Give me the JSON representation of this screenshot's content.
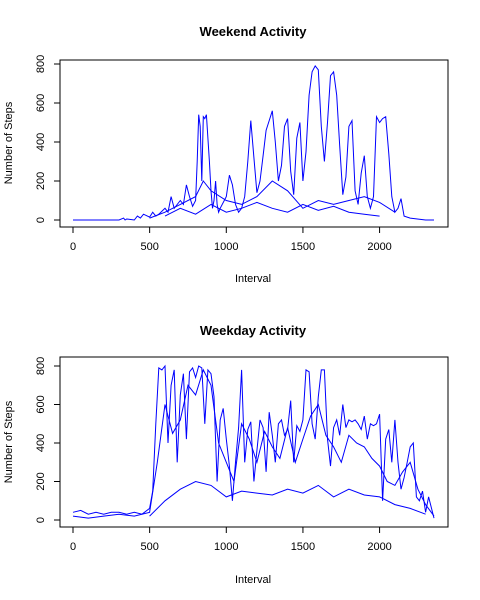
{
  "chart_data": [
    {
      "type": "line",
      "title": "Weekend Activity",
      "xlabel": "Interval",
      "ylabel": "Number of Steps",
      "xlim": [
        0,
        2355
      ],
      "ylim": [
        0,
        800
      ],
      "xticks": [
        0,
        500,
        1000,
        1500,
        2000
      ],
      "yticks": [
        0,
        200,
        400,
        600,
        800
      ],
      "color": "#0000ff",
      "series": [
        {
          "x": [
            0,
            300,
            330,
            340,
            350,
            400,
            420,
            440,
            460,
            500,
            520,
            540,
            560,
            600,
            620,
            640,
            660,
            700,
            720,
            740,
            760,
            780,
            800,
            810,
            820,
            830,
            840,
            850,
            860,
            870,
            880,
            890,
            900,
            910,
            920,
            930,
            940,
            950,
            960,
            1000,
            1020,
            1040,
            1060,
            1080,
            1100,
            1120,
            1140,
            1160,
            1180,
            1200,
            1220,
            1240,
            1260,
            1280,
            1300,
            1320,
            1340,
            1360,
            1380,
            1400,
            1420,
            1440,
            1460,
            1480,
            1500,
            1520,
            1540,
            1560,
            1580,
            1600,
            1620,
            1640,
            1660,
            1680,
            1700,
            1720,
            1740,
            1760,
            1780,
            1800,
            1820,
            1840,
            1860,
            1880,
            1900,
            1920,
            1940,
            1960,
            1980,
            2000,
            2020,
            2040,
            2060,
            2080,
            2100,
            2120,
            2140,
            2160,
            2200,
            2300,
            2355
          ],
          "y": [
            0,
            0,
            10,
            0,
            5,
            0,
            20,
            10,
            30,
            15,
            40,
            20,
            30,
            60,
            40,
            120,
            60,
            100,
            80,
            180,
            120,
            70,
            100,
            300,
            540,
            480,
            200,
            530,
            520,
            540,
            420,
            300,
            150,
            60,
            100,
            200,
            80,
            40,
            60,
            120,
            230,
            180,
            80,
            40,
            60,
            120,
            300,
            510,
            320,
            140,
            200,
            330,
            460,
            510,
            560,
            400,
            200,
            280,
            480,
            520,
            250,
            130,
            420,
            500,
            200,
            350,
            640,
            760,
            790,
            770,
            480,
            300,
            500,
            740,
            760,
            640,
            380,
            130,
            220,
            480,
            510,
            150,
            80,
            240,
            330,
            120,
            60,
            120,
            530,
            500,
            520,
            530,
            340,
            120,
            40,
            60,
            110,
            20,
            10,
            0,
            0
          ]
        },
        {
          "x": [
            500,
            600,
            700,
            800,
            850,
            900,
            1000,
            1100,
            1200,
            1300,
            1400,
            1500,
            1600,
            1700,
            1800,
            1900,
            2000,
            2100
          ],
          "y": [
            10,
            40,
            80,
            120,
            200,
            150,
            100,
            80,
            120,
            200,
            150,
            60,
            100,
            80,
            100,
            120,
            90,
            40
          ]
        },
        {
          "x": [
            600,
            700,
            800,
            900,
            1000,
            1100,
            1200,
            1300,
            1400,
            1500,
            1600,
            1700,
            1800,
            1900,
            2000
          ],
          "y": [
            20,
            60,
            30,
            80,
            40,
            60,
            90,
            60,
            40,
            80,
            50,
            70,
            40,
            30,
            20
          ]
        }
      ]
    },
    {
      "type": "line",
      "title": "Weekday Activity",
      "xlabel": "Interval",
      "ylabel": "Number of Steps",
      "xlim": [
        0,
        2355
      ],
      "ylim": [
        0,
        800
      ],
      "xticks": [
        0,
        500,
        1000,
        1500,
        2000
      ],
      "yticks": [
        0,
        200,
        400,
        600,
        800
      ],
      "color": "#0000ff",
      "series": [
        {
          "x": [
            0,
            50,
            100,
            150,
            200,
            250,
            300,
            350,
            400,
            450,
            500,
            520,
            540,
            560,
            580,
            600,
            620,
            640,
            660,
            680,
            700,
            720,
            740,
            760,
            780,
            800,
            820,
            840,
            860,
            880,
            900,
            920,
            940,
            960,
            980,
            1000,
            1020,
            1040,
            1060,
            1080,
            1100,
            1120,
            1140,
            1160,
            1180,
            1200,
            1220,
            1240,
            1260,
            1280,
            1300,
            1320,
            1340,
            1360,
            1380,
            1400,
            1420,
            1440,
            1460,
            1480,
            1500,
            1520,
            1540,
            1560,
            1580,
            1600,
            1620,
            1640,
            1660,
            1680,
            1700,
            1720,
            1740,
            1760,
            1780,
            1800,
            1820,
            1840,
            1860,
            1880,
            1900,
            1920,
            1940,
            1960,
            1980,
            2000,
            2020,
            2040,
            2060,
            2080,
            2100,
            2120,
            2140,
            2160,
            2180,
            2200,
            2220,
            2240,
            2260,
            2280,
            2300,
            2320,
            2355
          ],
          "y": [
            40,
            50,
            30,
            40,
            30,
            40,
            40,
            30,
            40,
            30,
            60,
            150,
            500,
            790,
            780,
            800,
            400,
            700,
            780,
            300,
            650,
            760,
            420,
            770,
            790,
            740,
            800,
            790,
            500,
            780,
            760,
            640,
            200,
            520,
            580,
            420,
            280,
            100,
            300,
            480,
            780,
            300,
            470,
            510,
            200,
            360,
            520,
            480,
            250,
            560,
            440,
            300,
            500,
            520,
            440,
            470,
            620,
            300,
            490,
            460,
            520,
            780,
            770,
            500,
            420,
            640,
            780,
            780,
            420,
            280,
            480,
            520,
            440,
            600,
            480,
            520,
            510,
            520,
            500,
            470,
            540,
            420,
            500,
            490,
            500,
            550,
            100,
            420,
            470,
            300,
            520,
            300,
            160,
            220,
            300,
            380,
            400,
            120,
            100,
            150,
            40,
            120,
            10
          ]
        },
        {
          "x": [
            0,
            100,
            200,
            300,
            400,
            500,
            550,
            600,
            650,
            700,
            750,
            800,
            850,
            900,
            950,
            1000,
            1050,
            1100,
            1150,
            1200,
            1250,
            1300,
            1350,
            1400,
            1450,
            1500,
            1550,
            1600,
            1650,
            1700,
            1750,
            1800,
            1850,
            1900,
            1950,
            2000,
            2050,
            2100,
            2150,
            2200,
            2250,
            2300,
            2355
          ],
          "y": [
            20,
            10,
            20,
            30,
            20,
            40,
            300,
            600,
            450,
            520,
            700,
            650,
            780,
            700,
            400,
            300,
            200,
            500,
            420,
            300,
            460,
            380,
            320,
            480,
            300,
            420,
            540,
            600,
            440,
            380,
            300,
            440,
            400,
            380,
            320,
            280,
            200,
            180,
            250,
            300,
            160,
            80,
            20
          ]
        },
        {
          "x": [
            500,
            600,
            700,
            800,
            900,
            1000,
            1100,
            1200,
            1300,
            1400,
            1500,
            1600,
            1700,
            1800,
            1900,
            2000,
            2100,
            2200,
            2300
          ],
          "y": [
            20,
            100,
            160,
            200,
            180,
            120,
            150,
            140,
            130,
            160,
            140,
            180,
            120,
            160,
            130,
            120,
            80,
            60,
            30
          ]
        }
      ]
    }
  ]
}
